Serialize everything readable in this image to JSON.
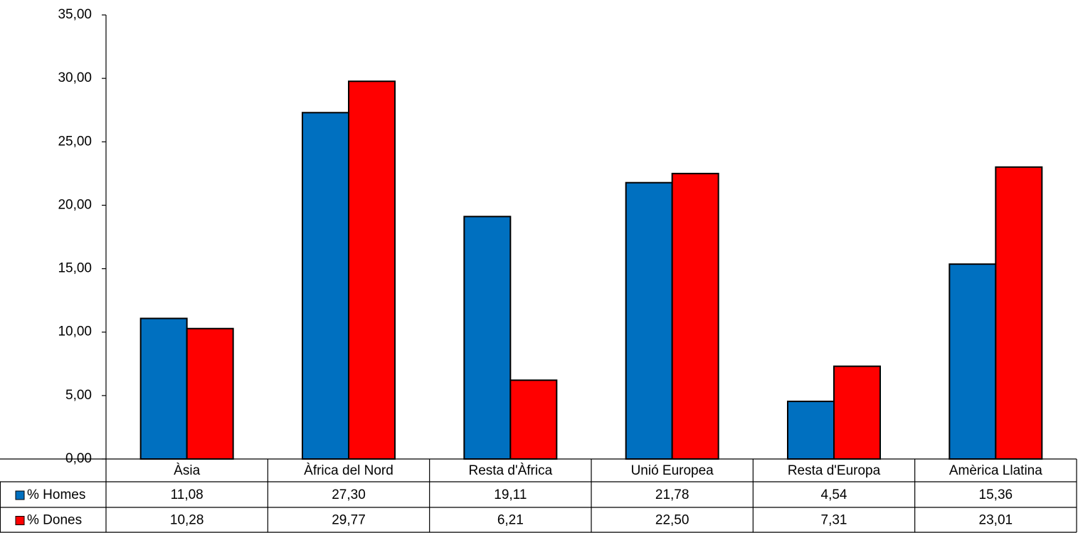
{
  "chart_data": {
    "type": "bar",
    "categories": [
      "Àsia",
      "Àfrica del Nord",
      "Resta d'Àfrica",
      "Unió Europea",
      "Resta d'Europa",
      "Amèrica Llatina"
    ],
    "series": [
      {
        "name": "% Homes",
        "values": [
          11.08,
          27.3,
          19.11,
          21.78,
          4.54,
          15.36
        ],
        "labels": [
          "11,08",
          "27,30",
          "19,11",
          "21,78",
          "4,54",
          "15,36"
        ],
        "color": "#0070C0"
      },
      {
        "name": "% Dones",
        "values": [
          10.28,
          29.77,
          6.21,
          22.5,
          7.31,
          23.01
        ],
        "labels": [
          "10,28",
          "29,77",
          "6,21",
          "22,50",
          "7,31",
          "23,01"
        ],
        "color": "#FF0000"
      }
    ],
    "y_ticks": [
      "0,00",
      "5,00",
      "10,00",
      "15,00",
      "20,00",
      "25,00",
      "30,00",
      "35,00"
    ],
    "ylim": [
      0,
      35
    ],
    "y_step": 5,
    "grid": false,
    "legend": "data-table",
    "title": "",
    "xlabel": "",
    "ylabel": ""
  }
}
